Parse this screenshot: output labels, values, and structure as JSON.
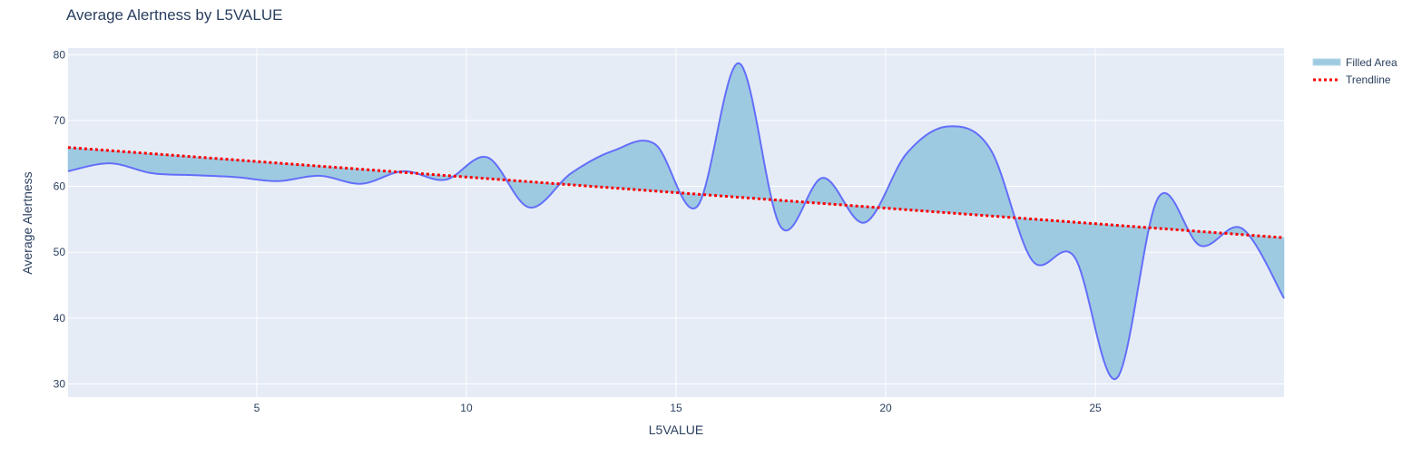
{
  "chart_data": {
    "type": "area",
    "title": "Average Alertness by L5VALUE",
    "xlabel": "L5VALUE",
    "ylabel": "Average Alertness",
    "xlim": [
      0.5,
      29.5
    ],
    "ylim": [
      28,
      81
    ],
    "x_ticks": [
      5,
      10,
      15,
      20,
      25
    ],
    "y_ticks": [
      30,
      40,
      50,
      60,
      70,
      80
    ],
    "grid": true,
    "legend_position": "top-right",
    "series": [
      {
        "name": "Filled Area",
        "color": "#9ecae1",
        "x": [
          0.5,
          1.5,
          2.5,
          3.5,
          4.5,
          5.5,
          6.5,
          7.5,
          8.5,
          9.5,
          10.5,
          11.5,
          12.5,
          13.5,
          14.5,
          15.5,
          16.5,
          17.5,
          18.5,
          19.5,
          20.5,
          21.5,
          22.5,
          23.5,
          24.5,
          25.5,
          26.5,
          27.5,
          28.5,
          29.5
        ],
        "y": [
          62.3,
          63.5,
          62.0,
          61.7,
          61.4,
          60.8,
          61.6,
          60.4,
          62.3,
          61.0,
          64.4,
          56.8,
          62.0,
          65.4,
          66.4,
          56.9,
          78.7,
          53.8,
          61.3,
          54.5,
          65.0,
          69.1,
          65.6,
          48.7,
          49.3,
          30.8,
          58.3,
          51.0,
          53.6,
          43.0
        ]
      },
      {
        "name": "Trendline",
        "color": "#ff0000",
        "type": "line",
        "x": [
          0.5,
          29.5
        ],
        "y": [
          65.9,
          52.2
        ]
      }
    ],
    "line_color": "#636efa"
  }
}
